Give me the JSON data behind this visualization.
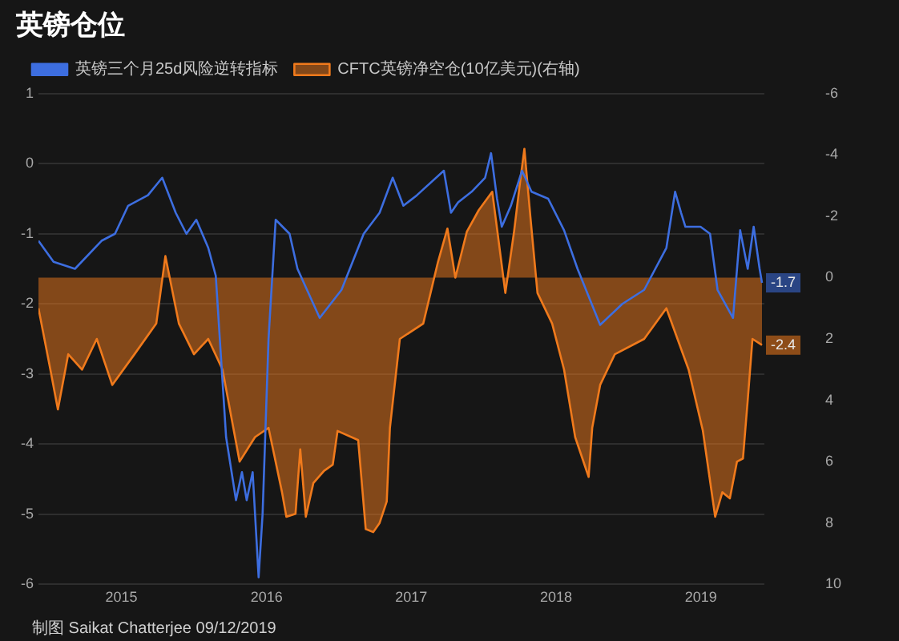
{
  "chart_data": {
    "type": "line",
    "title": "英镑仓位",
    "xlim": [
      "2014-12-05",
      "2019-12-09"
    ],
    "xticks": [
      {
        "value": "2015-07-02",
        "label": "2015"
      },
      {
        "value": "2016-07-02",
        "label": "2016"
      },
      {
        "value": "2017-07-02",
        "label": "2017"
      },
      {
        "value": "2018-07-02",
        "label": "2018"
      },
      {
        "value": "2019-07-02",
        "label": "2019"
      }
    ],
    "ylim": [
      -6,
      1
    ],
    "yticks": [
      -6,
      -5,
      -4,
      -3,
      -2,
      -1,
      0,
      1
    ],
    "y2lim": [
      10,
      -6
    ],
    "y2ticks": [
      -6,
      -4,
      -2,
      0,
      2,
      4,
      6,
      8,
      10
    ],
    "grid": "y",
    "legend": "top left",
    "marker": "none",
    "line_style": "solid",
    "series": [
      {
        "name": "英镑三个月25d风险逆转指标",
        "color": "#3d6ee0",
        "x": [
          "2014-12-05",
          "2015-01-12",
          "2015-03-07",
          "2015-05-13",
          "2015-06-16",
          "2015-07-19",
          "2015-09-07",
          "2015-10-13",
          "2015-11-16",
          "2015-12-13",
          "2016-01-07",
          "2016-02-06",
          "2016-02-25",
          "2016-03-22",
          "2016-04-16",
          "2016-05-01",
          "2016-05-13",
          "2016-05-28",
          "2016-06-12",
          "2016-06-22",
          "2016-07-07",
          "2016-07-25",
          "2016-08-29",
          "2016-09-18",
          "2016-11-13",
          "2017-01-07",
          "2017-03-04",
          "2017-04-13",
          "2017-05-16",
          "2017-06-12",
          "2017-07-16",
          "2017-09-22",
          "2017-10-10",
          "2017-10-28",
          "2017-12-01",
          "2018-01-04",
          "2018-01-19",
          "2018-02-03",
          "2018-02-15",
          "2018-03-10",
          "2018-04-07",
          "2018-05-01",
          "2018-06-12",
          "2018-07-22",
          "2018-08-25",
          "2018-10-21",
          "2018-12-16",
          "2019-02-09",
          "2019-04-06",
          "2019-04-28",
          "2019-05-13",
          "2019-05-24",
          "2019-07-01",
          "2019-07-25",
          "2019-08-13",
          "2019-09-21",
          "2019-10-09",
          "2019-10-28",
          "2019-11-12",
          "2019-11-27",
          "2019-12-03"
        ],
        "values": [
          -1.1,
          -1.4,
          -1.5,
          -1.1,
          -1.0,
          -0.6,
          -0.45,
          -0.2,
          -0.7,
          -1.0,
          -0.8,
          -1.2,
          -1.6,
          -3.9,
          -4.8,
          -4.4,
          -4.8,
          -4.4,
          -5.9,
          -5.0,
          -2.5,
          -0.8,
          -1.0,
          -1.5,
          -2.2,
          -1.8,
          -1.0,
          -0.7,
          -0.2,
          -0.6,
          -0.45,
          -0.1,
          -0.7,
          -0.55,
          -0.4,
          -0.2,
          0.15,
          -0.5,
          -0.9,
          -0.6,
          -0.1,
          -0.4,
          -0.5,
          -0.95,
          -1.5,
          -2.3,
          -2.0,
          -1.8,
          -1.2,
          -0.4,
          -0.7,
          -0.9,
          -0.9,
          -1.0,
          -1.8,
          -2.2,
          -0.95,
          -1.5,
          -0.9,
          -1.5,
          -1.7
        ],
        "value_labels": [
          null,
          null,
          null,
          null,
          null,
          null,
          null,
          null,
          null,
          null,
          null,
          null,
          null,
          null,
          null,
          null,
          null,
          null,
          null,
          null,
          null,
          null,
          null,
          null,
          null,
          null,
          null,
          null,
          null,
          null,
          null,
          null,
          null,
          null,
          null,
          null,
          null,
          null,
          null,
          null,
          null,
          null,
          null,
          null,
          null,
          null,
          null,
          null,
          null,
          null,
          null,
          null,
          null,
          null,
          null,
          null,
          null,
          null,
          null,
          null,
          "-1.7"
        ]
      },
      {
        "name": "CFTC英镑净空仓(10亿美元)(右轴)",
        "type": "area",
        "axis": "y2",
        "color": "#f07a1c",
        "x": [
          "2014-12-05",
          "2015-01-04",
          "2015-01-23",
          "2015-02-18",
          "2015-03-25",
          "2015-05-01",
          "2015-06-09",
          "2015-08-04",
          "2015-09-28",
          "2015-10-21",
          "2015-11-24",
          "2016-01-01",
          "2016-02-06",
          "2016-03-13",
          "2016-04-25",
          "2016-06-03",
          "2016-07-07",
          "2016-08-10",
          "2016-08-21",
          "2016-09-13",
          "2016-09-25",
          "2016-10-09",
          "2016-10-28",
          "2016-11-24",
          "2016-12-16",
          "2016-12-28",
          "2017-02-18",
          "2017-03-09",
          "2017-03-28",
          "2017-04-13",
          "2017-05-01",
          "2017-05-09",
          "2017-06-03",
          "2017-08-01",
          "2017-09-07",
          "2017-10-01",
          "2017-10-21",
          "2017-11-19",
          "2017-12-19",
          "2018-01-22",
          "2018-02-09",
          "2018-02-24",
          "2018-03-18",
          "2018-04-01",
          "2018-04-13",
          "2018-04-28",
          "2018-05-16",
          "2018-06-22",
          "2018-07-22",
          "2018-08-19",
          "2018-09-22",
          "2018-10-01",
          "2018-10-21",
          "2018-11-27",
          "2019-02-09",
          "2019-04-06",
          "2019-06-01",
          "2019-07-07",
          "2019-08-07",
          "2019-08-25",
          "2019-09-13",
          "2019-10-01",
          "2019-10-16",
          "2019-10-28",
          "2019-11-09",
          "2019-12-03"
        ],
        "values": [
          1.0,
          3.0,
          4.3,
          2.5,
          3.0,
          2.0,
          3.5,
          2.5,
          1.5,
          -0.7,
          1.5,
          2.5,
          2.0,
          3.0,
          6.0,
          5.2,
          4.9,
          7.0,
          7.8,
          7.7,
          5.6,
          7.8,
          6.7,
          6.3,
          6.1,
          5.0,
          5.3,
          8.2,
          8.3,
          8.0,
          7.3,
          4.9,
          2.0,
          1.5,
          -0.5,
          -1.6,
          0.0,
          -1.5,
          -2.2,
          -2.8,
          -1.0,
          0.5,
          -1.5,
          -3.0,
          -4.2,
          -2.0,
          0.5,
          1.5,
          3.0,
          5.2,
          6.5,
          4.9,
          3.5,
          2.5,
          2.0,
          1.0,
          3.0,
          5.0,
          7.8,
          7.0,
          7.2,
          6.0,
          5.9,
          4.0,
          2.0,
          2.2
        ]
      }
    ],
    "annotations": [
      "制图 Saikat Chatterjee 09/12/2019",
      "-2.4"
    ]
  }
}
